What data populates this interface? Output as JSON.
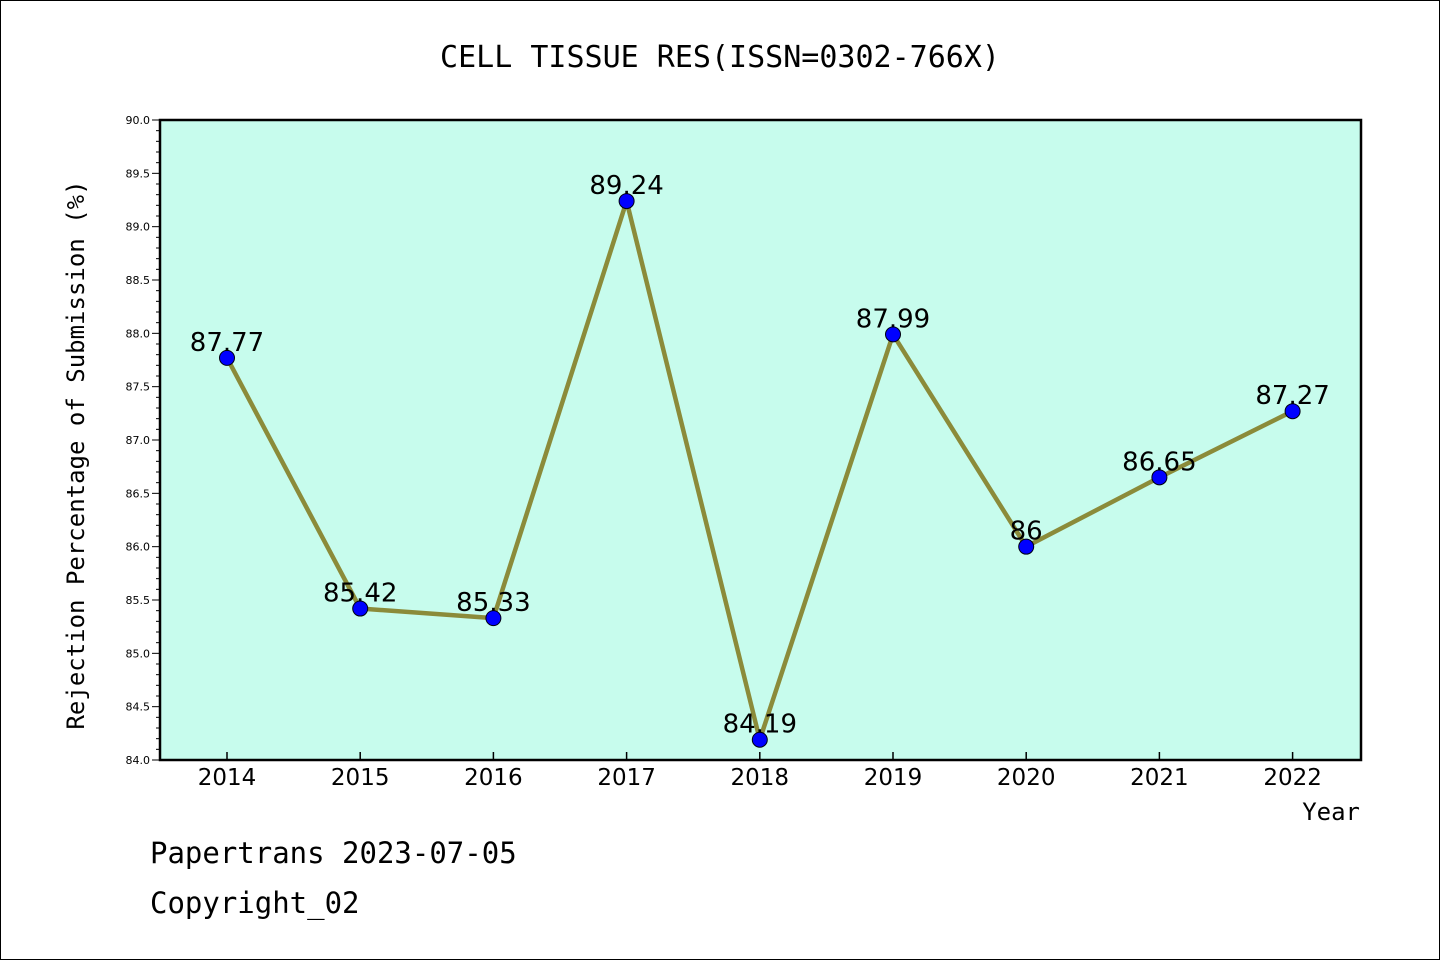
{
  "chart_data": {
    "type": "line",
    "title": "CELL TISSUE RES(ISSN=0302-766X)",
    "xlabel": "Year",
    "ylabel": "Rejection Percentage of Submission (%)",
    "categories": [
      "2014",
      "2015",
      "2016",
      "2017",
      "2018",
      "2019",
      "2020",
      "2021",
      "2022"
    ],
    "values": [
      87.77,
      85.42,
      85.33,
      89.24,
      84.19,
      87.99,
      86,
      86.65,
      87.27
    ],
    "data_labels": [
      "87.77",
      "85.42",
      "85.33",
      "89.24",
      "84.19",
      "87.99",
      "86",
      "86.65",
      "87.27"
    ],
    "ylim": [
      84.0,
      90.0
    ],
    "y_ticks": [
      "84.0",
      "84.5",
      "85.0",
      "85.5",
      "86.0",
      "86.5",
      "87.0",
      "87.5",
      "88.0",
      "88.5",
      "89.0",
      "89.5",
      "90.0"
    ],
    "grid": false,
    "colors": {
      "plot_background": "#c7fced",
      "line": "#8b8b3a",
      "marker": "#0000ff"
    }
  },
  "footer": {
    "date_text": "Papertrans 2023-07-05",
    "copyright_text": "Copyright_02"
  }
}
